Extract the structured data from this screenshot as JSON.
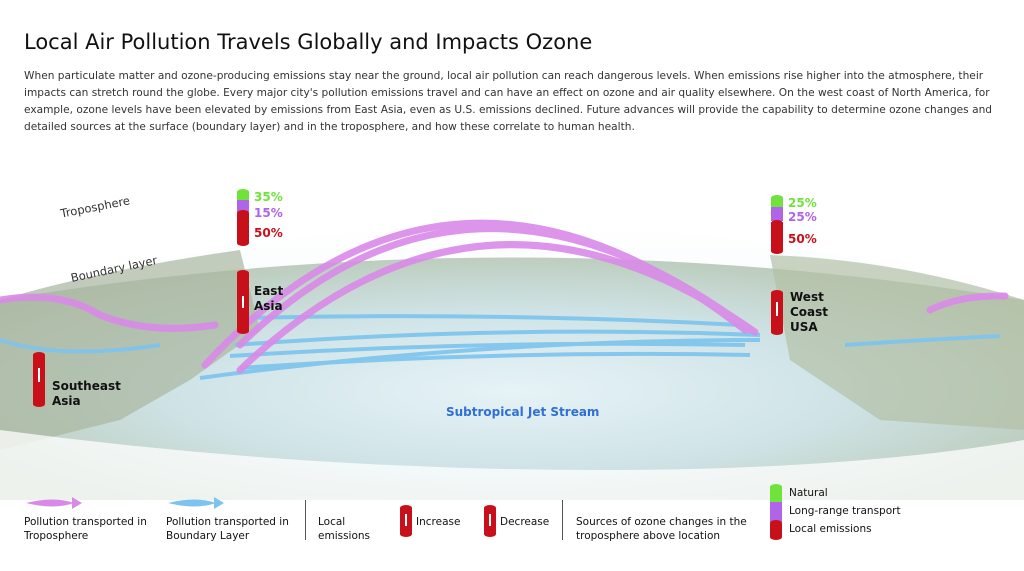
{
  "title": "Local Air Pollution Travels Globally and Impacts Ozone",
  "intro": "When particulate matter and ozone-producing emissions stay near the ground, local air pollution can reach dangerous levels. When emissions rise higher into the atmosphere, their impacts can stretch round the globe. Every major city's pollution emissions travel and can have an effect on ozone and air quality elsewhere. On the west coast of North America, for example, ozone levels have been elevated by emissions from East Asia, even as U.S. emissions declined. Future advances will provide the capability to determine ozone changes and detailed sources at the surface (boundary layer) and in the troposphere, and how these correlate to human health.",
  "layers": {
    "troposphere": "Troposphere",
    "boundary": "Boundary layer"
  },
  "jet_stream": "Subtropical Jet Stream",
  "locations": {
    "east_asia": {
      "label": "East Asia",
      "trend": "decrease",
      "natural": "35%",
      "long_range": "15%",
      "local": "50%"
    },
    "west_coast": {
      "label": "West Coast USA",
      "trend": "decrease",
      "natural": "25%",
      "long_range": "25%",
      "local": "50%"
    },
    "southeast_asia": {
      "label": "Southeast Asia",
      "trend": "increase"
    }
  },
  "legend": {
    "tropo": "Pollution transported in Troposphere",
    "boundary": "Pollution transported in Boundary Layer",
    "local": "Local emissions",
    "increase": "Increase",
    "decrease": "Decrease",
    "sources": "Sources of ozone changes in the troposphere above location",
    "natural": "Natural",
    "long_range": "Long-range transport",
    "local_emissions": "Local emissions"
  },
  "colors": {
    "natural": "#6fe33a",
    "long_range": "#b064e8",
    "local": "#c8101a",
    "tropo_arrow": "#d98ae8",
    "boundary_arrow": "#7cc4ee",
    "jet_text": "#2f6fd6"
  }
}
